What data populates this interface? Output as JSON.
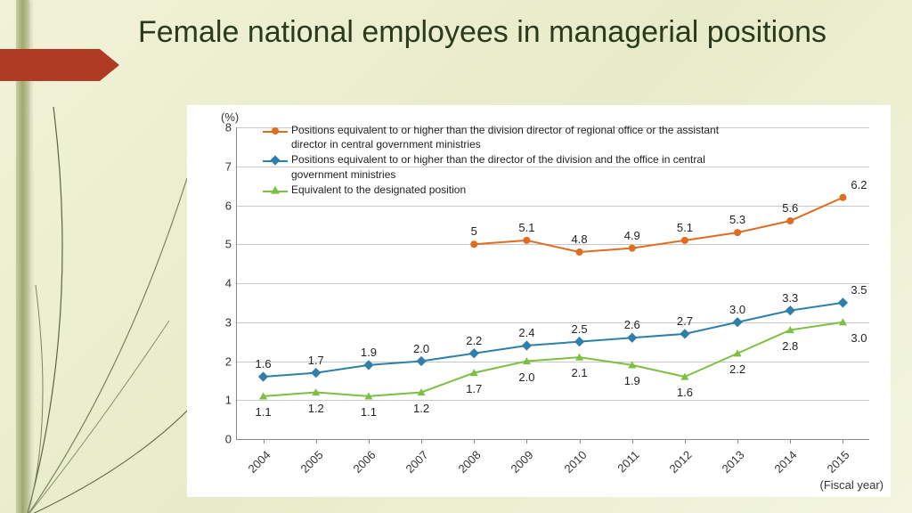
{
  "title": "Female national employees in managerial positions",
  "background_gradient": [
    "#f1f2d8",
    "#e8ebc9",
    "#f3f5e0"
  ],
  "accent_arrow_color": "#af3b25",
  "leaf_band_colors": [
    "#c9cfa2",
    "#a0a870"
  ],
  "grass_stroke_colors": [
    "#5a6640",
    "#7a845a",
    "#8a9268"
  ],
  "chart": {
    "type": "line",
    "y_unit": "(%)",
    "x_axis_label": "(Fiscal year)",
    "background_color": "#ffffff",
    "grid_color": "#c8c8c8",
    "axis_color": "#888888",
    "text_color": "#333333",
    "label_fontsize": 13,
    "legend_fontsize": 12,
    "ylim": [
      0,
      8
    ],
    "ytick_step": 1,
    "xtick_rotation_deg": -45,
    "categories": [
      "2004",
      "2005",
      "2006",
      "2007",
      "2008",
      "2009",
      "2010",
      "2011",
      "2012",
      "2013",
      "2014",
      "2015"
    ],
    "legend_position": "inside-top-left",
    "series": [
      {
        "name": "Positions equivalent to or higher than the division director of regional office or the assistant director in central government ministries",
        "color": "#e06c1f",
        "marker": "circle",
        "line_width": 2,
        "marker_size": 8,
        "label_side": "above",
        "values": [
          null,
          null,
          null,
          null,
          5.0,
          5.1,
          4.8,
          4.9,
          5.1,
          5.3,
          5.6,
          6.2
        ],
        "value_labels": [
          null,
          null,
          null,
          null,
          "5",
          "5.1",
          "4.8",
          "4.9",
          "5.1",
          "5.3",
          "5.6",
          "6.2"
        ]
      },
      {
        "name": "Positions equivalent to or higher than the director of the division and the office in central government ministries",
        "color": "#2f7fa8",
        "marker": "diamond",
        "line_width": 2,
        "marker_size": 8,
        "label_side": "above",
        "values": [
          1.6,
          1.7,
          1.9,
          2.0,
          2.2,
          2.4,
          2.5,
          2.6,
          2.7,
          3.0,
          3.3,
          3.5
        ],
        "value_labels": [
          "1.6",
          "1.7",
          "1.9",
          "2.0",
          "2.2",
          "2.4",
          "2.5",
          "2.6",
          "2.7",
          "3.0",
          "3.3",
          "3.5"
        ]
      },
      {
        "name": "Equivalent to the designated position",
        "color": "#7bc043",
        "marker": "triangle",
        "line_width": 2,
        "marker_size": 9,
        "label_side": "below",
        "values": [
          1.1,
          1.2,
          1.1,
          1.2,
          1.7,
          2.0,
          2.1,
          1.9,
          1.6,
          2.2,
          2.8,
          3.0
        ],
        "value_labels": [
          "1.1",
          "1.2",
          "1.1",
          "1.2",
          "1.7",
          "2.0",
          "2.1",
          "1.9",
          "1.6",
          "2.2",
          "2.8",
          "3.0"
        ]
      }
    ]
  }
}
